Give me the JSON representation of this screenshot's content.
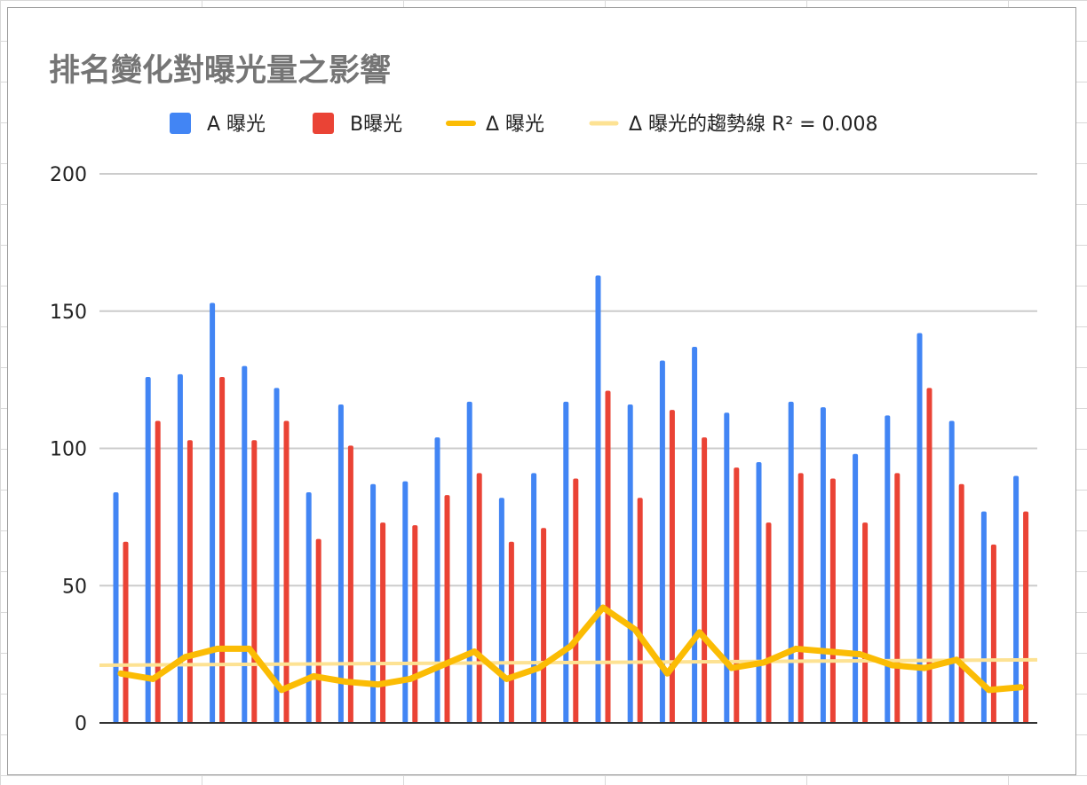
{
  "chart_data": {
    "type": "bar",
    "title": "排名變化對曝光量之影響",
    "xlabel": "",
    "ylabel": "",
    "ylim": [
      0,
      200
    ],
    "yticks": [
      0,
      50,
      100,
      150,
      200
    ],
    "grid": true,
    "legend_position": "top",
    "series": [
      {
        "name": "A 曝光",
        "kind": "bar",
        "color": "#4285f4",
        "values": [
          84,
          126,
          127,
          153,
          130,
          122,
          84,
          116,
          87,
          88,
          104,
          117,
          82,
          91,
          117,
          163,
          116,
          132,
          137,
          113,
          95,
          117,
          115,
          98,
          112,
          142,
          110,
          77,
          90
        ]
      },
      {
        "name": "B曝光",
        "kind": "bar",
        "color": "#ea4335",
        "values": [
          66,
          110,
          103,
          126,
          103,
          110,
          67,
          101,
          73,
          72,
          83,
          91,
          66,
          71,
          89,
          121,
          82,
          114,
          104,
          93,
          73,
          91,
          89,
          73,
          91,
          122,
          87,
          65,
          77
        ]
      },
      {
        "name": "Δ 曝光",
        "kind": "line",
        "color": "#fbbc04",
        "values": [
          18,
          16,
          24,
          27,
          27,
          12,
          17,
          15,
          14,
          16,
          21,
          26,
          16,
          20,
          28,
          42,
          34,
          18,
          33,
          20,
          22,
          27,
          26,
          25,
          21,
          20,
          23,
          12,
          13
        ]
      },
      {
        "name": "Δ 曝光的趨勢線 R² = 0.008",
        "kind": "trendline",
        "color": "#fde293",
        "values": [
          21,
          23
        ]
      }
    ]
  }
}
